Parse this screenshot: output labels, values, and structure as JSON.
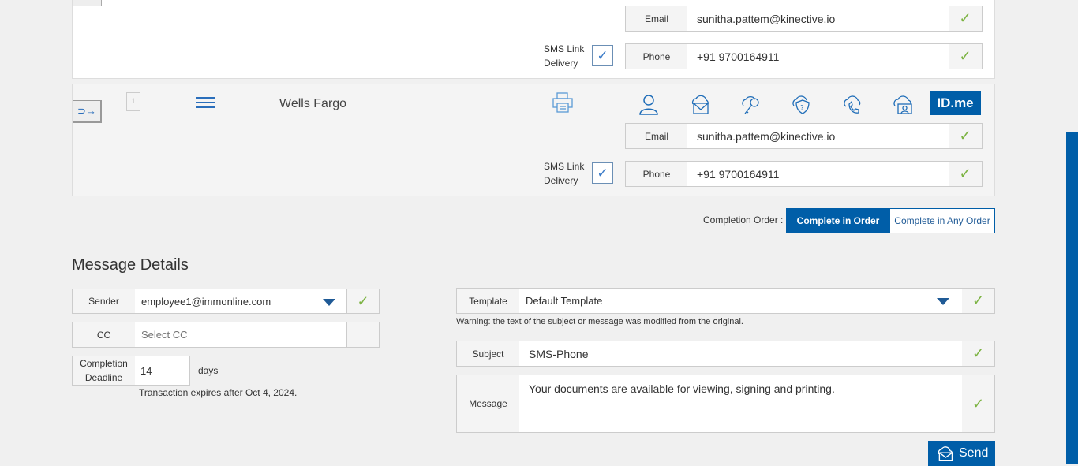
{
  "recipients": [
    {
      "email_label": "Email",
      "email": "sunitha.pattem@kinective.io",
      "phone_label": "Phone",
      "phone": "+91 9700164911",
      "sms_label_1": "SMS Link",
      "sms_label_2": "Delivery"
    },
    {
      "name": "Wells Fargo",
      "doc_count": "1",
      "email_label": "Email",
      "email": "sunitha.pattem@kinective.io",
      "phone_label": "Phone",
      "phone": "+91 9700164911",
      "sms_label_1": "SMS Link",
      "sms_label_2": "Delivery",
      "idme_label": "ID.me"
    }
  ],
  "completion_order": {
    "label": "Completion Order :",
    "options": [
      "Complete in Order",
      "Complete in Any Order"
    ],
    "selected": "Complete in Order"
  },
  "message_details": {
    "title": "Message Details",
    "sender_label": "Sender",
    "sender_value": "employee1@immonline.com",
    "cc_label": "CC",
    "cc_placeholder": "Select CC",
    "deadline_label_1": "Completion",
    "deadline_label_2": "Deadline",
    "deadline_value": "14",
    "deadline_unit": "days",
    "expires_text": "Transaction expires after Oct 4, 2024.",
    "template_label": "Template",
    "template_value": "Default Template",
    "warning": "Warning: the text of the subject or message was modified from the original.",
    "subject_label": "Subject",
    "subject_value": "SMS-Phone",
    "message_label": "Message",
    "message_value": "Your documents are available for viewing, signing and printing.",
    "send_label": "Send"
  },
  "colors": {
    "accent": "#005ea8",
    "check": "#7cb342"
  }
}
